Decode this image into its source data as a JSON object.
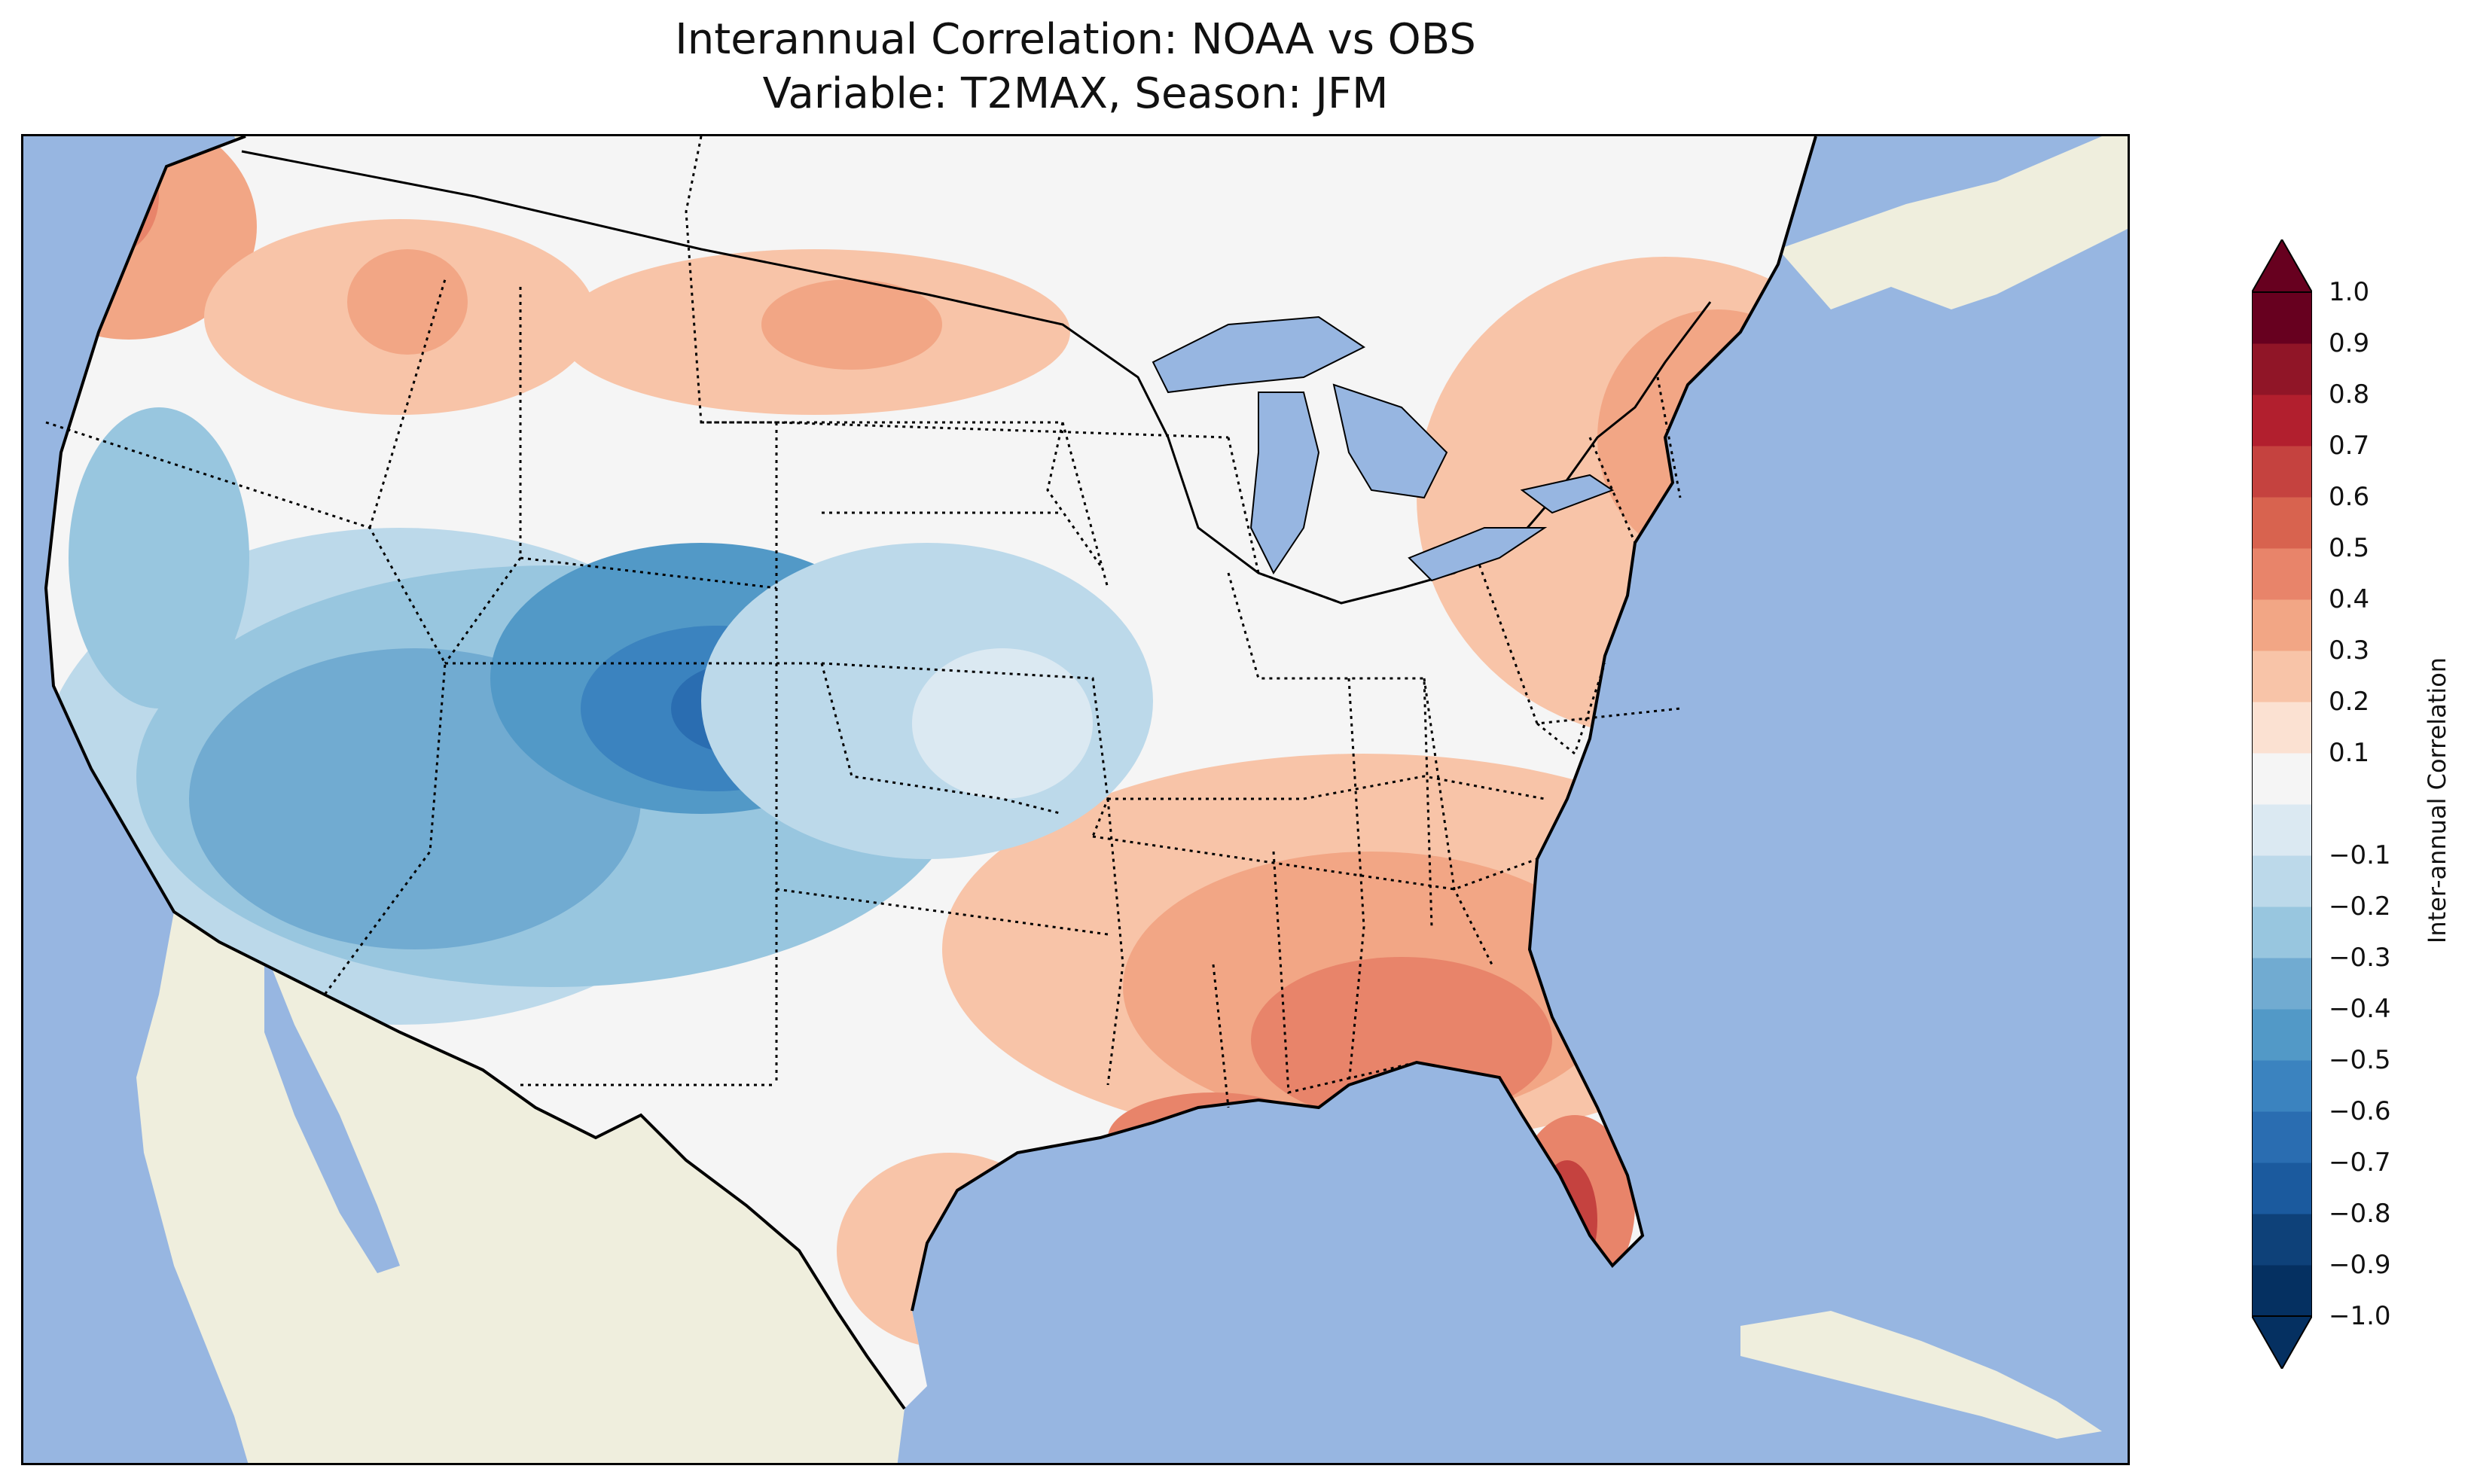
{
  "title": {
    "line1": "Interannual Correlation: NOAA vs OBS",
    "line2": "Variable: T2MAX, Season: JFM"
  },
  "colors": {
    "ocean": "#97b6e1",
    "land": "#efeedd",
    "neutral": "#f5f5f5"
  },
  "colorbar": {
    "label": "Inter-annual Correlation",
    "min": -1.0,
    "max": 1.0,
    "step": 0.1,
    "extend": "both",
    "ticks": [
      "1.0",
      "0.9",
      "0.8",
      "0.7",
      "0.6",
      "0.5",
      "0.4",
      "0.3",
      "0.2",
      "0.1",
      "−0.1",
      "−0.2",
      "−0.3",
      "−0.4",
      "−0.5",
      "−0.6",
      "−0.7",
      "−0.8",
      "−0.9",
      "−1.0"
    ],
    "tick_values": [
      1.0,
      0.9,
      0.8,
      0.7,
      0.6,
      0.5,
      0.4,
      0.3,
      0.2,
      0.1,
      -0.1,
      -0.2,
      -0.3,
      -0.4,
      -0.5,
      -0.6,
      -0.7,
      -0.8,
      -0.9,
      -1.0
    ],
    "colors": [
      "#053061",
      "#0e4179",
      "#1b5a9e",
      "#2a6db1",
      "#3b83bf",
      "#5299c7",
      "#71abd1",
      "#98c6df",
      "#bcd9ea",
      "#dbe9f2",
      "#f5f5f5",
      "#fbe1d2",
      "#f8c4a8",
      "#f2a685",
      "#e8846a",
      "#d8634f",
      "#c5423f",
      "#b21f2e",
      "#901527",
      "#67001f"
    ]
  },
  "regions": {
    "pacific_northwest": 0.55,
    "northern_rockies": 0.45,
    "northern_plains": 0.3,
    "upper_midwest": 0.05,
    "great_basin": -0.4,
    "colorado_rockies": -0.8,
    "desert_southwest": -0.5,
    "texas": 0.05,
    "gulf_coast": 0.45,
    "southeast": 0.5,
    "florida_peninsula": 0.75,
    "northeast": 0.35,
    "mid_atlantic": 0.25
  }
}
